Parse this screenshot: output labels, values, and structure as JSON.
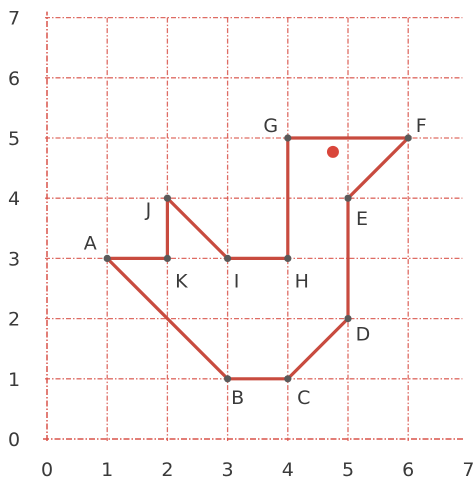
{
  "diagram": {
    "type": "coordinate-grid-polygon",
    "x_ticks": [
      "0",
      "1",
      "2",
      "3",
      "4",
      "5",
      "6",
      "7"
    ],
    "y_ticks": [
      "0",
      "1",
      "2",
      "3",
      "4",
      "5",
      "6",
      "7"
    ],
    "x_range": [
      0,
      7
    ],
    "y_range": [
      0,
      7
    ],
    "grid": true,
    "colors": {
      "grid": "#d9534a",
      "axis": "#d9534a",
      "shape": "#c84b3f",
      "point": "#5a5a5a",
      "marker": "#d9463b",
      "text": "#3a3a3a"
    },
    "vertices": [
      {
        "label": "A",
        "x": 1,
        "y": 3
      },
      {
        "label": "B",
        "x": 3,
        "y": 1
      },
      {
        "label": "C",
        "x": 4,
        "y": 1
      },
      {
        "label": "D",
        "x": 5,
        "y": 2
      },
      {
        "label": "E",
        "x": 5,
        "y": 4
      },
      {
        "label": "F",
        "x": 6,
        "y": 5
      },
      {
        "label": "G",
        "x": 4,
        "y": 5
      },
      {
        "label": "H",
        "x": 4,
        "y": 3
      },
      {
        "label": "I",
        "x": 3,
        "y": 3
      },
      {
        "label": "J",
        "x": 2,
        "y": 4
      },
      {
        "label": "K",
        "x": 2,
        "y": 3
      }
    ],
    "outline_order": [
      "A",
      "B",
      "C",
      "D",
      "E",
      "F",
      "G",
      "H",
      "I",
      "J",
      "K",
      "A"
    ],
    "marker_point": {
      "x": 4.75,
      "y": 4.77
    }
  }
}
